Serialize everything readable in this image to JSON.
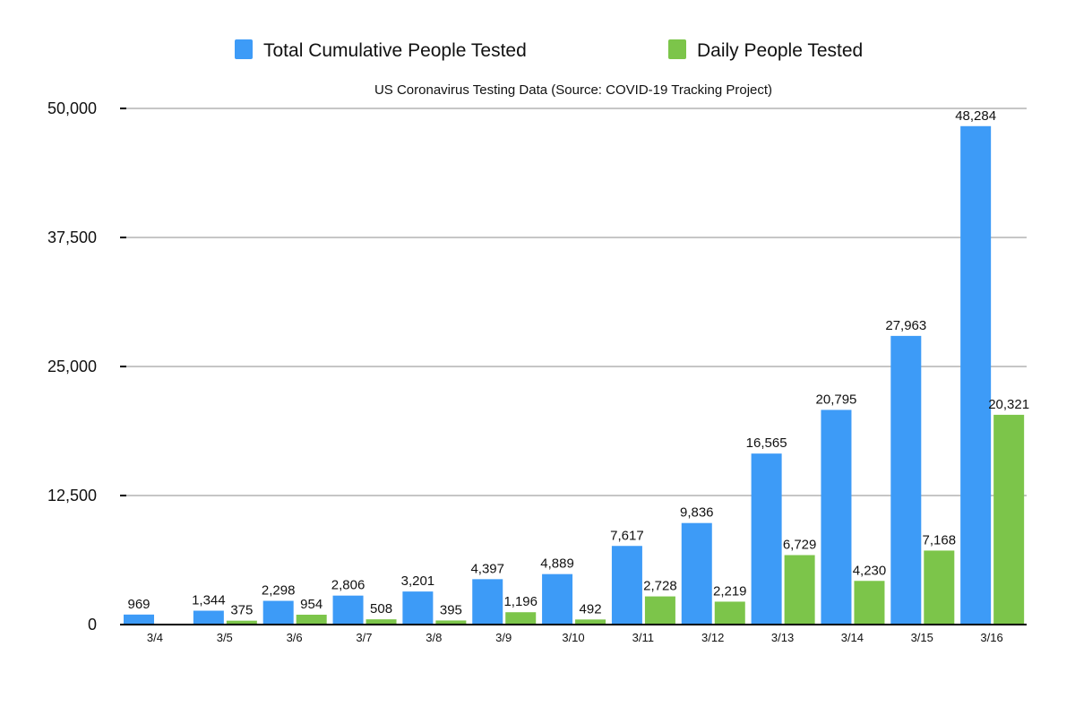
{
  "chart_data": {
    "type": "bar",
    "title": "US Coronavirus Testing Data (Source: COVID-19 Tracking Project)",
    "xlabel": "",
    "ylabel": "",
    "categories": [
      "3/4",
      "3/5",
      "3/6",
      "3/7",
      "3/8",
      "3/9",
      "3/10",
      "3/11",
      "3/12",
      "3/13",
      "3/14",
      "3/15",
      "3/16"
    ],
    "series": [
      {
        "name": "Total Cumulative People Tested",
        "color": "#3d9bf7",
        "values": [
          969,
          1344,
          2298,
          2806,
          3201,
          4397,
          4889,
          7617,
          9836,
          16565,
          20795,
          27963,
          48284
        ],
        "labels": [
          "969",
          "1,344",
          "2,298",
          "2,806",
          "3,201",
          "4,397",
          "4,889",
          "7,617",
          "9,836",
          "16,565",
          "20,795",
          "27,963",
          "48,284"
        ]
      },
      {
        "name": "Daily People Tested",
        "color": "#7cc54a",
        "values": [
          null,
          375,
          954,
          508,
          395,
          1196,
          492,
          2728,
          2219,
          6729,
          4230,
          7168,
          20321
        ],
        "labels": [
          null,
          "375",
          "954",
          "508",
          "395",
          "1,196",
          "492",
          "2,728",
          "2,219",
          "6,729",
          "4,230",
          "7,168",
          "20,321"
        ]
      }
    ],
    "ylim": [
      0,
      50000
    ],
    "yticks": [
      0,
      12500,
      25000,
      37500,
      50000
    ],
    "ytick_labels": [
      "0",
      "12,500",
      "25,000",
      "37,500",
      "50,000"
    ],
    "grid": true,
    "legend_position": "top"
  }
}
